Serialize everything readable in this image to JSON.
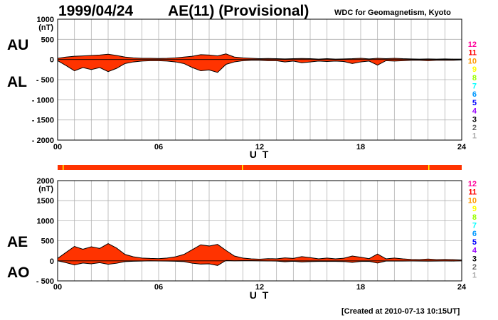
{
  "header": {
    "date": "1999/04/24",
    "title": "AE(11) (Provisional)",
    "source": "WDC for Geomagnetism, Kyoto",
    "created": "[Created at 2010-07-13 10:15UT]"
  },
  "legend": {
    "levels": [
      {
        "label": "12",
        "color": "#ff0099"
      },
      {
        "label": "11",
        "color": "#ff0000"
      },
      {
        "label": "10",
        "color": "#ff9900"
      },
      {
        "label": "9",
        "color": "#ffff00"
      },
      {
        "label": "8",
        "color": "#99ff00"
      },
      {
        "label": "7",
        "color": "#00ffff"
      },
      {
        "label": "6",
        "color": "#0099ff"
      },
      {
        "label": "5",
        "color": "#0000ff"
      },
      {
        "label": "4",
        "color": "#9900ff"
      },
      {
        "label": "3",
        "color": "#000000"
      },
      {
        "label": "2",
        "color": "#666666"
      },
      {
        "label": "1",
        "color": "#aaaaaa"
      }
    ]
  },
  "colors": {
    "fill": "#ff3300",
    "station_bar": "#ff3300",
    "station_gap": "#ffff00"
  },
  "chart_data": [
    {
      "type": "area",
      "name": "AU/AL",
      "upper_label": "AU",
      "lower_label": "AL",
      "ylabel_unit": "(nT)",
      "xlabel": "U T",
      "xlim": [
        0,
        24
      ],
      "ylim": [
        -2000,
        1000
      ],
      "grid": true,
      "x_ticks": [
        "00",
        "06",
        "12",
        "18",
        "24"
      ],
      "y_ticks": [
        "1000",
        "500",
        "0",
        "- 500",
        "- 1000",
        "- 1500",
        "- 2000"
      ],
      "x": [
        0,
        0.5,
        1,
        1.5,
        2,
        2.5,
        3,
        3.5,
        4,
        4.5,
        5,
        5.5,
        6,
        6.5,
        7,
        7.5,
        8,
        8.5,
        9,
        9.5,
        10,
        10.5,
        11,
        11.5,
        12,
        12.5,
        13,
        13.5,
        14,
        14.5,
        15,
        15.5,
        16,
        16.5,
        17,
        17.5,
        18,
        18.5,
        19,
        19.5,
        20,
        20.5,
        21,
        21.5,
        22,
        22.5,
        23,
        23.5,
        24
      ],
      "series": [
        {
          "name": "AU",
          "values": [
            30,
            60,
            80,
            90,
            100,
            110,
            130,
            100,
            60,
            40,
            30,
            30,
            25,
            30,
            40,
            60,
            80,
            120,
            110,
            90,
            140,
            60,
            40,
            30,
            20,
            25,
            20,
            15,
            20,
            25,
            20,
            10,
            20,
            10,
            15,
            20,
            30,
            15,
            30,
            20,
            30,
            20,
            15,
            10,
            15,
            10,
            15,
            10,
            10
          ]
        },
        {
          "name": "AL",
          "values": [
            -30,
            -150,
            -280,
            -200,
            -250,
            -200,
            -300,
            -220,
            -100,
            -60,
            -40,
            -30,
            -30,
            -40,
            -60,
            -100,
            -200,
            -280,
            -260,
            -320,
            -120,
            -60,
            -30,
            -20,
            -20,
            -30,
            -30,
            -60,
            -40,
            -80,
            -60,
            -40,
            -50,
            -40,
            -50,
            -100,
            -60,
            -40,
            -140,
            -30,
            -40,
            -30,
            -20,
            -20,
            -30,
            -20,
            -20,
            -20,
            -10
          ]
        }
      ]
    },
    {
      "type": "area",
      "name": "AE/AO",
      "upper_label": "AE",
      "lower_label": "AO",
      "ylabel_unit": "(nT)",
      "xlabel": "U T",
      "xlim": [
        0,
        24
      ],
      "ylim": [
        -500,
        2000
      ],
      "grid": true,
      "x_ticks": [
        "00",
        "06",
        "12",
        "18",
        "24"
      ],
      "y_ticks": [
        "2000",
        "1500",
        "1000",
        "500",
        "0",
        "- 500"
      ],
      "x": [
        0,
        0.5,
        1,
        1.5,
        2,
        2.5,
        3,
        3.5,
        4,
        4.5,
        5,
        5.5,
        6,
        6.5,
        7,
        7.5,
        8,
        8.5,
        9,
        9.5,
        10,
        10.5,
        11,
        11.5,
        12,
        12.5,
        13,
        13.5,
        14,
        14.5,
        15,
        15.5,
        16,
        16.5,
        17,
        17.5,
        18,
        18.5,
        19,
        19.5,
        20,
        20.5,
        21,
        21.5,
        22,
        22.5,
        23,
        23.5,
        24
      ],
      "series": [
        {
          "name": "AE",
          "values": [
            60,
            210,
            360,
            290,
            350,
            310,
            430,
            320,
            160,
            100,
            70,
            60,
            55,
            70,
            100,
            160,
            280,
            400,
            370,
            410,
            260,
            120,
            70,
            50,
            40,
            55,
            50,
            75,
            60,
            105,
            80,
            50,
            70,
            50,
            65,
            120,
            90,
            55,
            170,
            50,
            70,
            50,
            35,
            30,
            45,
            30,
            35,
            30,
            20
          ]
        },
        {
          "name": "AO",
          "values": [
            0,
            -45,
            -100,
            -55,
            -75,
            -45,
            -85,
            -60,
            -20,
            -10,
            -5,
            0,
            -3,
            -5,
            -10,
            -20,
            -60,
            -80,
            -75,
            -115,
            10,
            0,
            5,
            5,
            0,
            -3,
            -5,
            -23,
            -10,
            -28,
            -20,
            -15,
            -15,
            -15,
            -18,
            -40,
            -15,
            -13,
            -55,
            -5,
            -5,
            -5,
            -3,
            -5,
            -8,
            -5,
            -3,
            -5,
            0
          ]
        }
      ]
    }
  ]
}
